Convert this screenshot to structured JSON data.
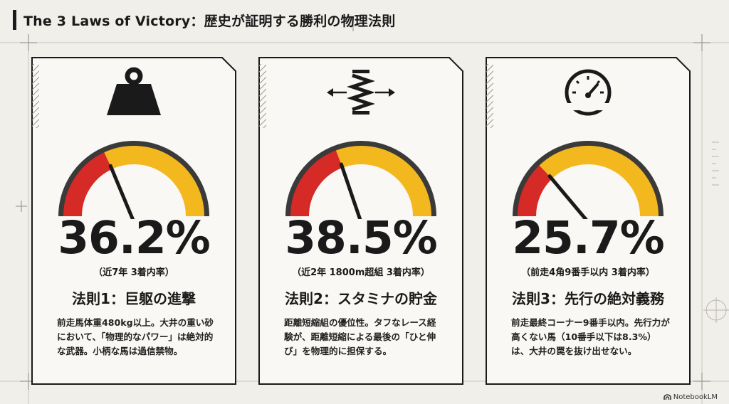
{
  "header": {
    "title": "The 3 Laws of Victory：歴史が証明する勝利の物理法則"
  },
  "cards": [
    {
      "icon": "weight-icon",
      "percent_value": 36.2,
      "percent": "36.2%",
      "note": "（近7年 3着内率）",
      "law": "法則1：巨躯の進撃",
      "desc": "前走馬体重480kg以上。大井の重い砂において、「物理的なパワー」は絶対的な武器。小柄な馬は過信禁物。"
    },
    {
      "icon": "spring-icon",
      "percent_value": 38.5,
      "percent": "38.5%",
      "note": "（近2年 1800m超組 3着内率）",
      "law": "法則2：スタミナの貯金",
      "desc": "距離短縮組の優位性。タフなレース経験が、距離短縮による最後の「ひと伸び」を物理的に担保する。"
    },
    {
      "icon": "speedometer-icon",
      "percent_value": 25.7,
      "percent": "25.7%",
      "note": "（前走4角9番手以内 3着内率）",
      "law": "法則3：先行の絶対義務",
      "desc": "前走最終コーナー9番手以内。先行力が高くない馬（10番手以下は8.3%）は、大井の罠を抜け出せない。"
    }
  ],
  "gauge_colors": {
    "red": "#d62a26",
    "yellow": "#f4b81f",
    "dark": "#3a3a3a"
  },
  "brand": {
    "label": "NotebookLM"
  }
}
